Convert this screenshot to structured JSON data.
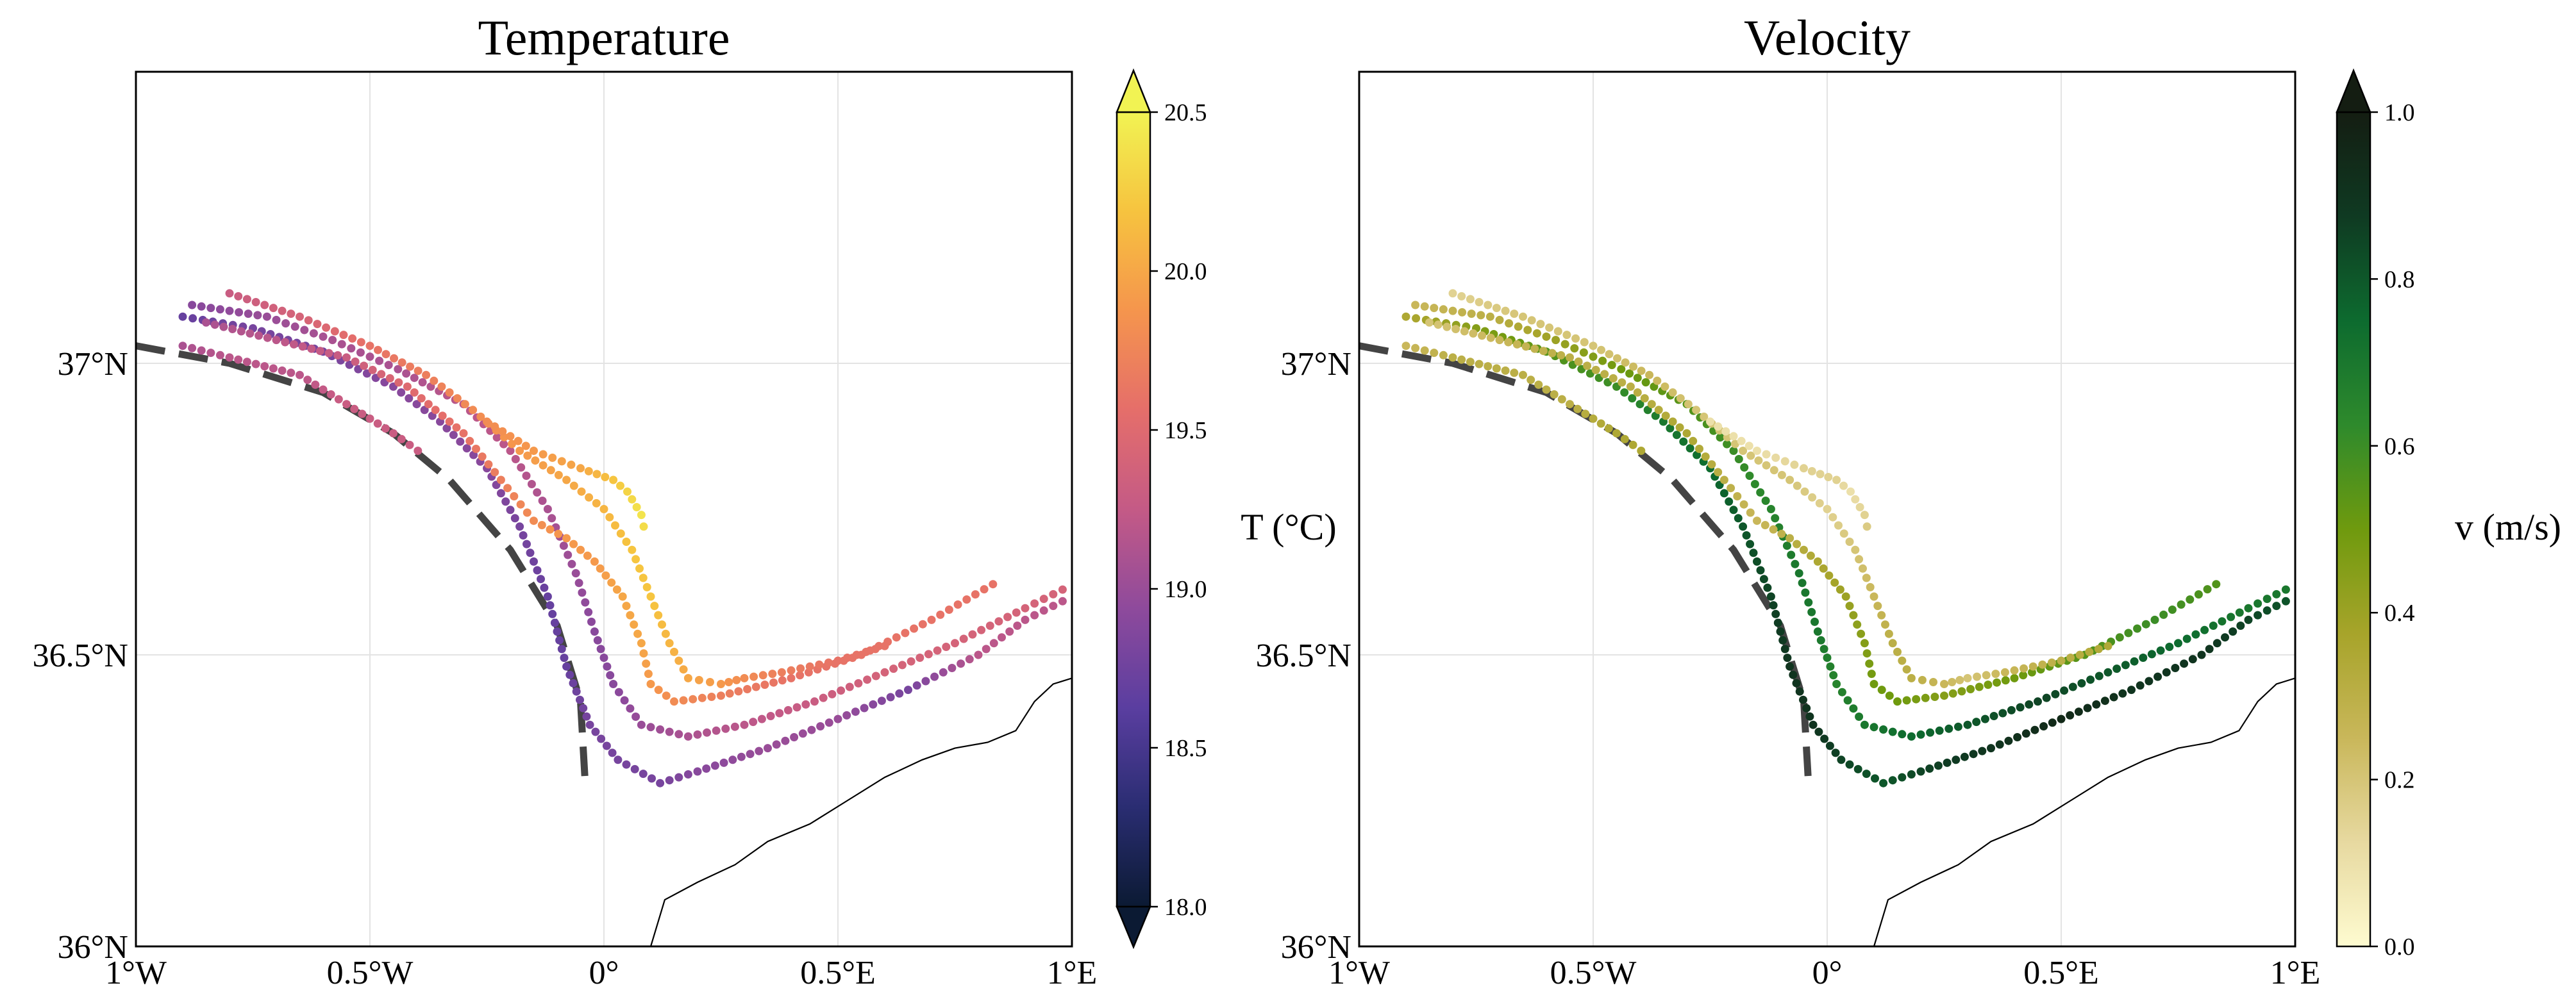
{
  "chart_data": [
    {
      "type": "scatter",
      "title": "Temperature",
      "xlim": [
        -1.0,
        1.0
      ],
      "ylim": [
        36.0,
        37.5
      ],
      "x_ticks": [
        -1.0,
        -0.5,
        0.0,
        0.5,
        1.0
      ],
      "x_tick_labels": [
        "1°W",
        "0.5°W",
        "0°",
        "0.5°E",
        "1°E"
      ],
      "y_ticks": [
        36.0,
        36.5,
        37.0
      ],
      "y_tick_labels": [
        "36°N",
        "36.5°N",
        "37°N"
      ],
      "grid": true,
      "colorbar": {
        "label": "T (°C)",
        "min": 18.0,
        "max": 20.5,
        "ticks": [
          18.0,
          18.5,
          19.0,
          19.5,
          20.0,
          20.5
        ],
        "tick_labels": [
          "18.0",
          "18.5",
          "19.0",
          "19.5",
          "20.0",
          "20.5"
        ],
        "extend": "both",
        "colormap": [
          "#0b1a33",
          "#2a2d72",
          "#5a3ea0",
          "#8e4a9c",
          "#c45a86",
          "#e56e6a",
          "#f5954d",
          "#f6c33f",
          "#f1f353"
        ]
      },
      "dashed_front": [
        [
          -1.0,
          37.03
        ],
        [
          -0.8,
          37.0
        ],
        [
          -0.6,
          36.95
        ],
        [
          -0.45,
          36.88
        ],
        [
          -0.33,
          36.8
        ],
        [
          -0.2,
          36.68
        ],
        [
          -0.1,
          36.55
        ],
        [
          -0.05,
          36.42
        ],
        [
          -0.04,
          36.28
        ]
      ],
      "coastline": [
        [
          0.1,
          36.0
        ],
        [
          0.13,
          36.08
        ],
        [
          0.2,
          36.11
        ],
        [
          0.28,
          36.14
        ],
        [
          0.35,
          36.18
        ],
        [
          0.44,
          36.21
        ],
        [
          0.52,
          36.25
        ],
        [
          0.6,
          36.29
        ],
        [
          0.68,
          36.32
        ],
        [
          0.75,
          36.34
        ],
        [
          0.82,
          36.35
        ],
        [
          0.88,
          36.37
        ],
        [
          0.92,
          36.42
        ],
        [
          0.96,
          36.45
        ],
        [
          1.0,
          36.46
        ]
      ],
      "tracks": [
        {
          "points": [
            [
              -0.9,
              37.08
            ],
            [
              -0.75,
              37.06
            ],
            [
              -0.6,
              37.02
            ],
            [
              -0.45,
              36.96
            ],
            [
              -0.35,
              36.9
            ],
            [
              -0.25,
              36.82
            ],
            [
              -0.18,
              36.72
            ],
            [
              -0.12,
              36.6
            ],
            [
              -0.08,
              36.48
            ],
            [
              -0.03,
              36.38
            ],
            [
              0.03,
              36.32
            ],
            [
              0.12,
              36.28
            ],
            [
              0.2,
              36.3
            ],
            [
              0.35,
              36.34
            ],
            [
              0.5,
              36.39
            ],
            [
              0.65,
              36.44
            ],
            [
              0.8,
              36.5
            ],
            [
              0.9,
              36.56
            ],
            [
              1.0,
              36.6
            ]
          ],
          "t": [
            18.7,
            18.8,
            18.8,
            18.9,
            18.9,
            18.9,
            18.8,
            18.7,
            18.7,
            18.8,
            18.8,
            18.8,
            18.9,
            19.0,
            19.0,
            18.8,
            19.2,
            19.2,
            19.2
          ],
          "v": [
            0.35,
            0.45,
            0.55,
            0.6,
            0.7,
            0.75,
            0.8,
            0.85,
            0.9,
            0.9,
            0.85,
            0.8,
            0.85,
            0.9,
            0.95,
            0.9,
            0.9,
            0.85,
            0.8
          ]
        },
        {
          "points": [
            [
              -0.88,
              37.1
            ],
            [
              -0.72,
              37.08
            ],
            [
              -0.58,
              37.04
            ],
            [
              -0.44,
              36.99
            ],
            [
              -0.3,
              36.93
            ],
            [
              -0.2,
              36.85
            ],
            [
              -0.12,
              36.75
            ],
            [
              -0.06,
              36.64
            ],
            [
              -0.02,
              36.54
            ],
            [
              0.02,
              36.45
            ],
            [
              0.08,
              36.38
            ],
            [
              0.18,
              36.36
            ],
            [
              0.3,
              36.38
            ],
            [
              0.45,
              36.42
            ],
            [
              0.6,
              36.47
            ],
            [
              0.75,
              36.52
            ],
            [
              0.9,
              36.58
            ],
            [
              1.0,
              36.62
            ]
          ],
          "t": [
            18.9,
            19.0,
            19.1,
            19.1,
            19.2,
            19.2,
            19.1,
            19.0,
            18.9,
            18.9,
            19.0,
            19.1,
            19.2,
            19.3,
            19.4,
            19.4,
            19.4,
            19.4
          ],
          "v": [
            0.25,
            0.3,
            0.4,
            0.5,
            0.55,
            0.6,
            0.65,
            0.7,
            0.7,
            0.65,
            0.7,
            0.75,
            0.8,
            0.85,
            0.8,
            0.75,
            0.7,
            0.7
          ]
        },
        {
          "points": [
            [
              -0.85,
              37.07
            ],
            [
              -0.7,
              37.04
            ],
            [
              -0.55,
              37.01
            ],
            [
              -0.42,
              36.96
            ],
            [
              -0.3,
              36.88
            ],
            [
              -0.22,
              36.8
            ],
            [
              -0.15,
              36.73
            ],
            [
              -0.08,
              36.7
            ],
            [
              -0.02,
              36.66
            ],
            [
              0.04,
              36.6
            ],
            [
              0.08,
              36.52
            ],
            [
              0.1,
              36.45
            ],
            [
              0.15,
              36.42
            ],
            [
              0.25,
              36.43
            ],
            [
              0.4,
              36.46
            ],
            [
              0.55,
              36.5
            ],
            [
              0.7,
              36.56
            ],
            [
              0.85,
              36.63
            ]
          ],
          "t": [
            19.1,
            19.2,
            19.3,
            19.5,
            19.6,
            19.7,
            19.8,
            19.9,
            19.9,
            20.0,
            20.0,
            19.9,
            19.8,
            19.7,
            19.6,
            19.6,
            19.6,
            19.6
          ],
          "v": [
            0.2,
            0.25,
            0.3,
            0.3,
            0.35,
            0.3,
            0.25,
            0.3,
            0.35,
            0.4,
            0.45,
            0.5,
            0.5,
            0.45,
            0.5,
            0.55,
            0.6,
            0.55
          ]
        },
        {
          "points": [
            [
              -0.8,
              37.12
            ],
            [
              -0.65,
              37.08
            ],
            [
              -0.5,
              37.03
            ],
            [
              -0.38,
              36.98
            ],
            [
              -0.28,
              36.92
            ],
            [
              -0.18,
              36.85
            ],
            [
              -0.08,
              36.8
            ],
            [
              0.0,
              36.75
            ],
            [
              0.06,
              36.68
            ],
            [
              0.1,
              36.6
            ],
            [
              0.14,
              36.52
            ],
            [
              0.18,
              36.46
            ],
            [
              0.25,
              36.45
            ],
            [
              0.3,
              36.46
            ],
            [
              0.38,
              36.47
            ],
            [
              0.5,
              36.49
            ],
            [
              0.62,
              36.52
            ]
          ],
          "t": [
            19.3,
            19.4,
            19.6,
            19.7,
            19.8,
            19.9,
            20.0,
            20.1,
            20.2,
            20.2,
            20.1,
            20.0,
            19.9,
            19.8,
            19.7,
            19.6,
            19.6
          ],
          "v": [
            0.15,
            0.2,
            0.2,
            0.25,
            0.2,
            0.2,
            0.2,
            0.15,
            0.2,
            0.25,
            0.3,
            0.3,
            0.25,
            0.2,
            0.25,
            0.3,
            0.35
          ]
        },
        {
          "points": [
            [
              -0.9,
              37.03
            ],
            [
              -0.8,
              37.01
            ],
            [
              -0.65,
              36.98
            ],
            [
              -0.55,
              36.93
            ],
            [
              -0.45,
              36.88
            ],
            [
              -0.38,
              36.84
            ]
          ],
          "t": [
            19.1,
            19.2,
            19.2,
            19.3,
            19.3,
            19.3
          ],
          "v": [
            0.25,
            0.3,
            0.3,
            0.3,
            0.35,
            0.35
          ]
        },
        {
          "points": [
            [
              -0.25,
              36.9
            ],
            [
              -0.15,
              36.85
            ],
            [
              -0.05,
              36.82
            ],
            [
              0.02,
              36.8
            ],
            [
              0.05,
              36.78
            ],
            [
              0.08,
              36.74
            ],
            [
              0.09,
              36.7
            ]
          ],
          "t": [
            19.8,
            19.9,
            20.0,
            20.2,
            20.3,
            20.4,
            20.3
          ],
          "v": [
            0.1,
            0.1,
            0.15,
            0.15,
            0.1,
            0.15,
            0.2
          ]
        }
      ]
    },
    {
      "type": "scatter",
      "title": "Velocity",
      "xlim": [
        -1.0,
        1.0
      ],
      "ylim": [
        36.0,
        37.5
      ],
      "x_ticks": [
        -1.0,
        -0.5,
        0.0,
        0.5,
        1.0
      ],
      "x_tick_labels": [
        "1°W",
        "0.5°W",
        "0°",
        "0.5°E",
        "1°E"
      ],
      "y_ticks": [
        36.0,
        36.5,
        37.0
      ],
      "y_tick_labels": [
        "36°N",
        "36.5°N",
        "37°N"
      ],
      "grid": true,
      "colorbar": {
        "label": "v (m/s)",
        "min": 0.0,
        "max": 1.0,
        "ticks": [
          0.0,
          0.2,
          0.4,
          0.6,
          0.8,
          1.0
        ],
        "tick_labels": [
          "0.0",
          "0.2",
          "0.4",
          "0.6",
          "0.8",
          "1.0"
        ],
        "extend": "max",
        "colormap": [
          "#fefbd0",
          "#e7d9a0",
          "#c9b75a",
          "#a7a42a",
          "#6f9a0e",
          "#2e8a2c",
          "#0d6b2f",
          "#0f3a22",
          "#141d12"
        ]
      }
    }
  ]
}
